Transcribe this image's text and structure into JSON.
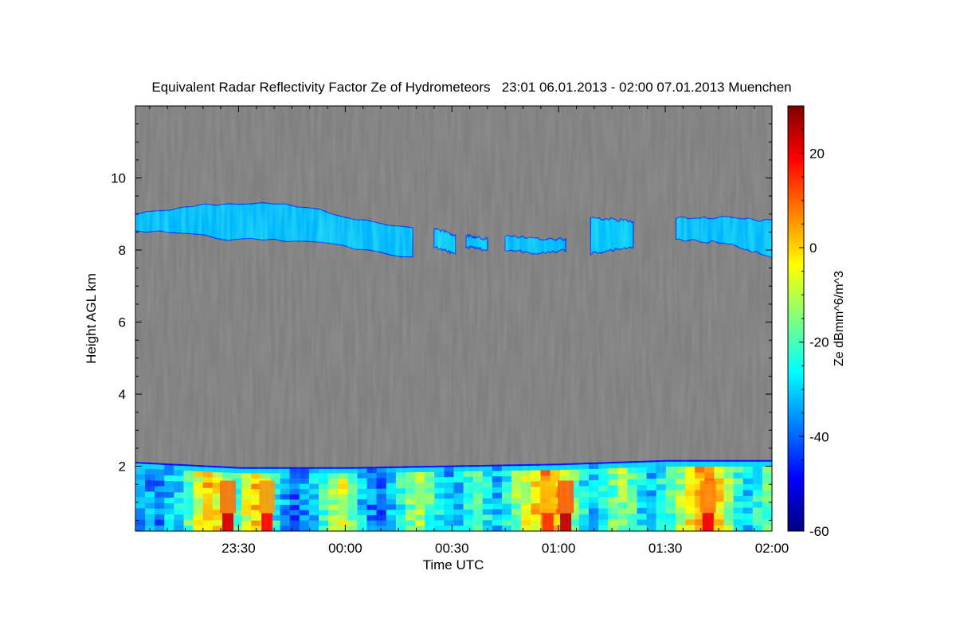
{
  "chart_data": {
    "type": "heatmap",
    "title": "Equivalent Radar Reflectivity Factor Ze of Hydrometeors   23:01 06.01.2013 - 02:00 07.01.2013 Muenchen",
    "xlabel": "Time UTC",
    "ylabel": "Height AGL km",
    "x_range_utc": [
      "23:01",
      "02:00"
    ],
    "x_ticks": [
      "23:30",
      "00:00",
      "00:30",
      "01:00",
      "01:30",
      "02:00"
    ],
    "x_tick_values_min": [
      29,
      59,
      89,
      119,
      149,
      179
    ],
    "ylim": [
      0.2,
      12.0
    ],
    "y_ticks": [
      2,
      4,
      6,
      8,
      10
    ],
    "colorbar": {
      "label": "Ze dBmm^6/m^3",
      "range": [
        -60,
        30
      ],
      "ticks": [
        20,
        0,
        -20,
        -40,
        -60
      ],
      "colormap": "jet"
    },
    "colors": {
      "background": "#808080",
      "colormap_stops": [
        "#00007f",
        "#0000ff",
        "#0080ff",
        "#00ffff",
        "#80ff80",
        "#ffff00",
        "#ff8000",
        "#ff0000",
        "#7f0000"
      ]
    },
    "layers": [
      {
        "name": "upper cloud",
        "segments": [
          {
            "t_start_min": 0,
            "t_end_min": 78,
            "top_km": [
              9.0,
              9.2,
              9.3,
              9.3,
              9.1,
              8.8,
              8.6
            ],
            "base_km": [
              8.5,
              8.5,
              8.3,
              8.3,
              8.2,
              8.0,
              7.8
            ],
            "ze_dbz": -33
          },
          {
            "t_start_min": 84,
            "t_end_min": 90,
            "top_km": [
              8.6,
              8.4
            ],
            "base_km": [
              8.1,
              7.9
            ],
            "ze_dbz": -32
          },
          {
            "t_start_min": 93,
            "t_end_min": 99,
            "top_km": [
              8.4,
              8.3
            ],
            "base_km": [
              8.1,
              8.0
            ],
            "ze_dbz": -32
          },
          {
            "t_start_min": 104,
            "t_end_min": 121,
            "top_km": [
              8.4,
              8.3,
              8.3
            ],
            "base_km": [
              8.0,
              7.9,
              8.0
            ],
            "ze_dbz": -33
          },
          {
            "t_start_min": 128,
            "t_end_min": 140,
            "top_km": [
              8.9,
              8.8
            ],
            "base_km": [
              7.9,
              8.1
            ],
            "ze_dbz": -32
          },
          {
            "t_start_min": 152,
            "t_end_min": 179,
            "top_km": [
              8.9,
              8.9,
              8.8
            ],
            "base_km": [
              8.3,
              8.2,
              7.8
            ],
            "ze_dbz": -33
          }
        ]
      },
      {
        "name": "lower precipitation layer",
        "top_km": [
          2.1,
          1.95,
          1.95,
          2.0,
          2.05,
          2.15,
          2.15
        ],
        "base_km": 0.2,
        "column_ze_dbz": [
          -34,
          -36,
          -38,
          -32,
          -28,
          -18,
          -6,
          4,
          -4,
          -12,
          -22,
          -8,
          2,
          -10,
          -26,
          -34,
          -40,
          -36,
          -30,
          -22,
          -14,
          -8,
          -18,
          -30,
          -38,
          -42,
          -34,
          -24,
          -16,
          -12,
          -20,
          -28,
          -34,
          -30,
          -22,
          -18,
          -26,
          -32,
          -24,
          -14,
          -6,
          0,
          6,
          2,
          -8,
          -18,
          -26,
          -30,
          -24,
          -18,
          -14,
          -20,
          -28,
          -32,
          -26,
          -20,
          -12,
          -4,
          2,
          6,
          -2,
          -12,
          -22,
          -30,
          -26,
          -18
        ],
        "hotspots": [
          {
            "t_min": 26,
            "ze_dbz": 22
          },
          {
            "t_min": 37,
            "ze_dbz": 18
          },
          {
            "t_min": 116,
            "ze_dbz": 14
          },
          {
            "t_min": 121,
            "ze_dbz": 24
          },
          {
            "t_min": 161,
            "ze_dbz": 20
          }
        ]
      }
    ],
    "grid": false,
    "legend": "colorbar-right"
  }
}
